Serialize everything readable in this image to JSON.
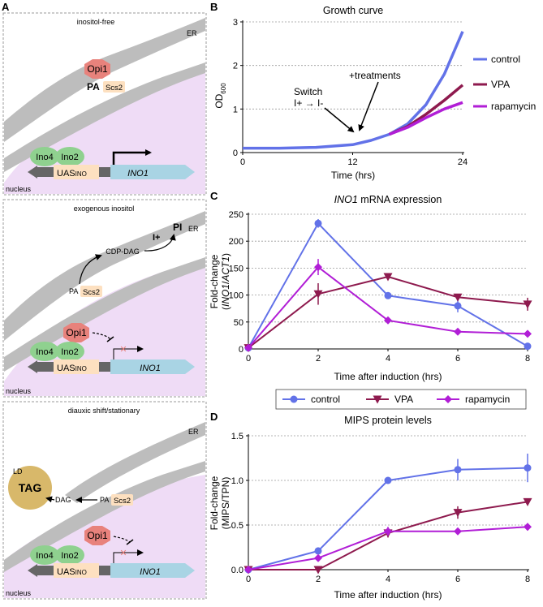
{
  "colors": {
    "control": "#6272e8",
    "vpa": "#8e1a4e",
    "rapamycin": "#b11ed6",
    "nucleus_fill": "#efdcf6",
    "er_gray": "#bdbdbd",
    "opi1": "#e8827c",
    "ino": "#8fd18f",
    "uas": "#fde0c0",
    "ino1_gene": "#a9d4e4",
    "ld": "#d8b86a"
  },
  "panels": {
    "A": {
      "letter": "A",
      "box1": {
        "caption": "inositol-free",
        "er": "ER",
        "opi1": "Opi1",
        "pa": "PA",
        "scs2": "Scs2",
        "ino4": "Ino4",
        "ino2": "Ino2",
        "uas": "UAS",
        "uas_sub": "INO",
        "gene": "INO1",
        "nucleus": "nucleus"
      },
      "box2": {
        "caption": "exogenous inositol",
        "er": "ER",
        "iplus": "I+",
        "pi": "PI",
        "cdpdag": "CDP-DAG",
        "pa": "PA",
        "scs2": "Scs2",
        "opi1": "Opi1",
        "ino4": "Ino4",
        "ino2": "Ino2",
        "uas": "UAS",
        "uas_sub": "INO",
        "gene": "INO1",
        "nucleus": "nucleus"
      },
      "box3": {
        "caption": "diauxic shift/stationary",
        "er": "ER",
        "ld": "LD",
        "tag": "TAG",
        "dag": "DAG",
        "pa": "PA",
        "scs2": "Scs2",
        "opi1": "Opi1",
        "ino4": "Ino4",
        "ino2": "Ino2",
        "uas": "UAS",
        "uas_sub": "INO",
        "gene": "INO1",
        "nucleus": "nucleus"
      }
    },
    "B": {
      "letter": "B",
      "annotation_switch_1": "Switch",
      "annotation_switch_2": "I+ → I-",
      "annotation_treat": "+treatments"
    },
    "C": {
      "letter": "C"
    },
    "D": {
      "letter": "D"
    }
  },
  "shared_legend": {
    "control": "control",
    "vpa": "VPA",
    "rapamycin": "rapamycin"
  },
  "chart_data": [
    {
      "id": "B",
      "type": "line",
      "title": "Growth curve",
      "ylabel": "OD",
      "ylabel_sub": "600",
      "xlabel": "Time (hrs)",
      "xlim": [
        0,
        24
      ],
      "ylim": [
        0,
        3
      ],
      "xticks": [
        "0",
        "12",
        "24"
      ],
      "yticks": [
        "0",
        "1",
        "2",
        "3"
      ],
      "legend": [
        "control",
        "VPA",
        "rapamycin"
      ],
      "series": [
        {
          "name": "control",
          "x": [
            0,
            4,
            8,
            12,
            14,
            16,
            18,
            20,
            22,
            24
          ],
          "y": [
            0.1,
            0.1,
            0.12,
            0.18,
            0.28,
            0.42,
            0.66,
            1.1,
            1.8,
            2.78
          ]
        },
        {
          "name": "VPA",
          "x": [
            16,
            18,
            20,
            22,
            24
          ],
          "y": [
            0.42,
            0.6,
            0.88,
            1.2,
            1.55
          ]
        },
        {
          "name": "rapamycin",
          "x": [
            16,
            18,
            20,
            22,
            24
          ],
          "y": [
            0.42,
            0.58,
            0.8,
            1.0,
            1.15
          ]
        }
      ]
    },
    {
      "id": "C",
      "type": "line",
      "title_italic": "INO1",
      "title_rest": " mRNA expression",
      "ylabel_1": "Fold-change",
      "ylabel_2_open": "(",
      "ylabel_2_a": "INO1",
      "ylabel_2_slash": "/",
      "ylabel_2_b": "ACT1",
      "ylabel_2_close": ")",
      "xlabel": "Time after induction (hrs)",
      "xlim": [
        0,
        8
      ],
      "ylim": [
        0,
        250
      ],
      "xticks": [
        "0",
        "2",
        "4",
        "6",
        "8"
      ],
      "yticks": [
        "0",
        "50",
        "100",
        "150",
        "200",
        "250"
      ],
      "series": [
        {
          "name": "control",
          "x": [
            0,
            2,
            4,
            6,
            8
          ],
          "y": [
            2,
            233,
            99,
            80,
            5
          ],
          "err": [
            0,
            8,
            0,
            12,
            0
          ]
        },
        {
          "name": "VPA",
          "x": [
            0,
            2,
            4,
            6,
            8
          ],
          "y": [
            2,
            102,
            134,
            96,
            83
          ],
          "err": [
            0,
            20,
            0,
            5,
            12
          ]
        },
        {
          "name": "rapamycin",
          "x": [
            0,
            2,
            4,
            6,
            8
          ],
          "y": [
            2,
            152,
            53,
            32,
            28
          ],
          "err": [
            0,
            15,
            0,
            0,
            0
          ]
        }
      ]
    },
    {
      "id": "D",
      "type": "line",
      "title": "MIPS protein levels",
      "ylabel_1": "Fold-change",
      "ylabel_2": "(MIPS/TPN)",
      "xlabel": "Time after induction (hrs)",
      "xlim": [
        0,
        8
      ],
      "ylim": [
        0,
        1.5
      ],
      "xticks": [
        "0",
        "2",
        "4",
        "6",
        "8"
      ],
      "yticks": [
        "0.0",
        "0.5",
        "1.0",
        "1.5"
      ],
      "series": [
        {
          "name": "control",
          "x": [
            0,
            2,
            4,
            6,
            8
          ],
          "y": [
            0.0,
            0.21,
            1.0,
            1.12,
            1.14
          ],
          "err": [
            0,
            0,
            0,
            0.12,
            0.16
          ]
        },
        {
          "name": "VPA",
          "x": [
            0,
            2,
            4,
            6,
            8
          ],
          "y": [
            0.0,
            0.0,
            0.41,
            0.64,
            0.76
          ],
          "err": [
            0,
            0,
            0.05,
            0.07,
            0
          ]
        },
        {
          "name": "rapamycin",
          "x": [
            0,
            2,
            4,
            6,
            8
          ],
          "y": [
            0.0,
            0.13,
            0.43,
            0.43,
            0.48
          ],
          "err": [
            0,
            0,
            0.05,
            0,
            0.04
          ]
        }
      ]
    }
  ]
}
